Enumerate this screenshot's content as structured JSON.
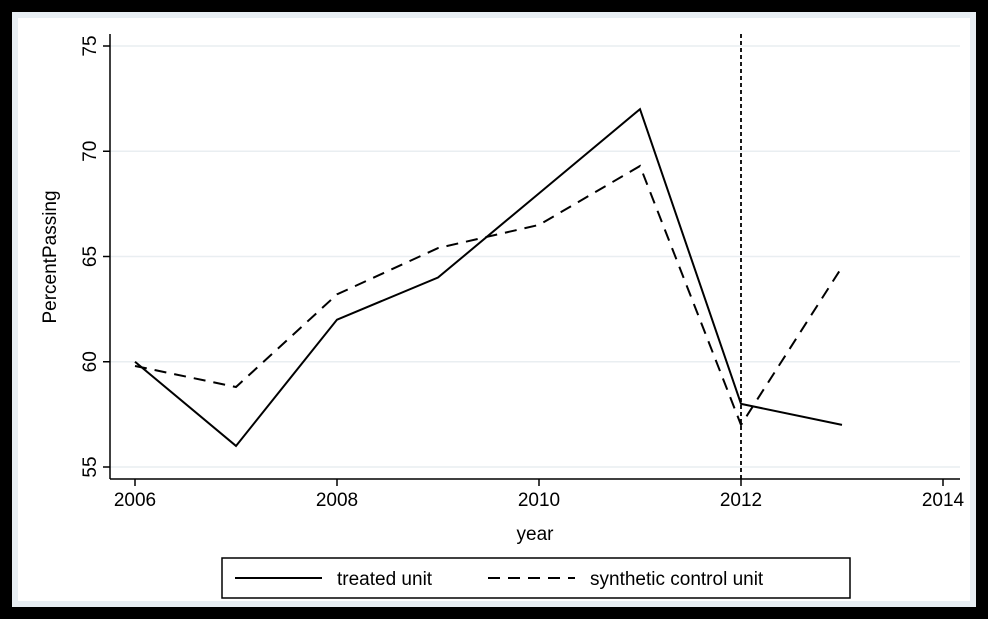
{
  "chart_data": {
    "type": "line",
    "title": "",
    "xlabel": "year",
    "ylabel": "PercentPassing",
    "xlim": [
      2006,
      2014
    ],
    "ylim": [
      55,
      75
    ],
    "x_ticks": [
      "2006",
      "2008",
      "2010",
      "2012",
      "2014"
    ],
    "y_ticks": [
      "55",
      "60",
      "65",
      "70",
      "75"
    ],
    "grid": "horizontal",
    "reference_line": {
      "axis": "x",
      "value": 2012,
      "style": "dotted"
    },
    "x": [
      2006,
      2007,
      2008,
      2009,
      2010,
      2011,
      2012,
      2013
    ],
    "series": [
      {
        "name": "treated unit",
        "style": "solid",
        "values": [
          60,
          56,
          62,
          64,
          68,
          72,
          58,
          57
        ]
      },
      {
        "name": "synthetic control unit",
        "style": "dashed",
        "values": [
          59.8,
          58.8,
          63.2,
          65.4,
          66.5,
          69.3,
          57,
          64.5
        ]
      }
    ],
    "legend_position": "bottom"
  },
  "colors": {
    "frame": "#000000",
    "outer_band": "#e8eef3",
    "plot_bg": "#ffffff",
    "grid": "#e9eef1",
    "line": "#000000"
  }
}
